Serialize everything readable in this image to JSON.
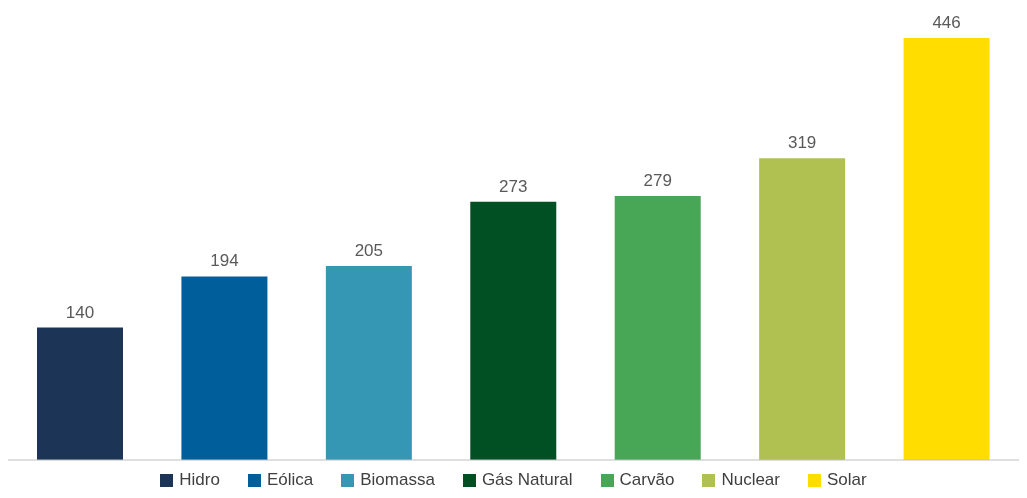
{
  "chart_data": {
    "type": "bar",
    "categories": [
      null,
      null,
      null,
      null,
      null,
      null,
      null
    ],
    "stacked": true,
    "data_labels": true,
    "legend": "bottom",
    "grid": false,
    "series": [
      {
        "name": "Hidro",
        "color": "#1c3557",
        "values": [
          140,
          null,
          null,
          null,
          null,
          null,
          null
        ]
      },
      {
        "name": "Eólica",
        "color": "#005f9a",
        "values": [
          null,
          194,
          null,
          null,
          null,
          null,
          null
        ]
      },
      {
        "name": "Biomassa",
        "color": "#3597b3",
        "values": [
          null,
          null,
          205,
          null,
          null,
          null,
          null
        ]
      },
      {
        "name": "Gás Natural",
        "color": "#005023",
        "values": [
          null,
          null,
          null,
          273,
          null,
          null,
          null
        ]
      },
      {
        "name": "Carvão",
        "color": "#48a657",
        "values": [
          null,
          null,
          null,
          null,
          279,
          null,
          null
        ]
      },
      {
        "name": "Nuclear",
        "color": "#b0c152",
        "values": [
          null,
          null,
          null,
          null,
          null,
          319,
          null
        ]
      },
      {
        "name": "Solar",
        "color": "#ffdd00",
        "values": [
          null,
          null,
          null,
          null,
          null,
          null,
          446
        ]
      }
    ]
  }
}
